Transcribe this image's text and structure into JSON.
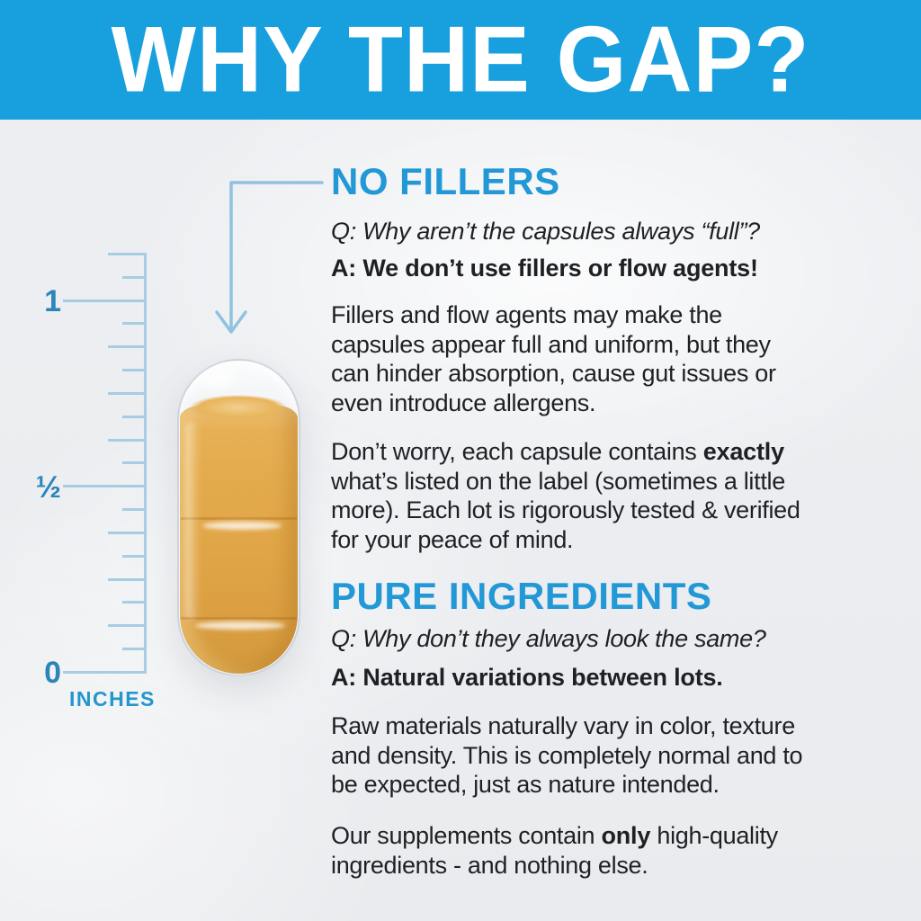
{
  "header": {
    "title": "WHY THE GAP?"
  },
  "ruler": {
    "major_labels": [
      "1",
      "½",
      "0"
    ],
    "unit": "INCHES"
  },
  "capsule": {
    "content": "half-filled capsule of amber powder"
  },
  "sections": [
    {
      "heading": "NO FILLERS",
      "question": "Q: Why aren’t the capsules always “full”?",
      "answer": "A: We don’t use fillers or flow agents!",
      "p1": "Fillers and flow agents may make the\ncapsules appear full and uniform, but they\ncan hinder absorption, cause gut issues or\neven introduce allergens.",
      "p2_pre": "Don’t worry, each capsule contains ",
      "p2_bold": "exactly",
      "p2_post": "\nwhat’s listed on the label (sometimes a little\nmore). Each lot is rigorously tested & verified\nfor your peace of mind."
    },
    {
      "heading": "PURE INGREDIENTS",
      "question": "Q: Why don’t they always look the same?",
      "answer": "A: Natural variations between lots.",
      "p1": "Raw materials naturally vary in color, texture\nand density. This is completely normal and to\nbe expected, just as nature intended.",
      "p2_pre": "Our supplements contain ",
      "p2_bold": "only",
      "p2_post": " high-quality\ningredients - and nothing else."
    }
  ],
  "colors": {
    "banner_blue": "#189fde",
    "heading_blue": "#2298d6",
    "arrow_blue": "#90c2e0",
    "ruler_tick_blue": "#a8cce2",
    "ruler_label_blue": "#2b85b9",
    "inches_blue": "#2396cd",
    "body_text": "#1e2024",
    "powder_amber": "#e2a748",
    "background": "#edeff2"
  }
}
